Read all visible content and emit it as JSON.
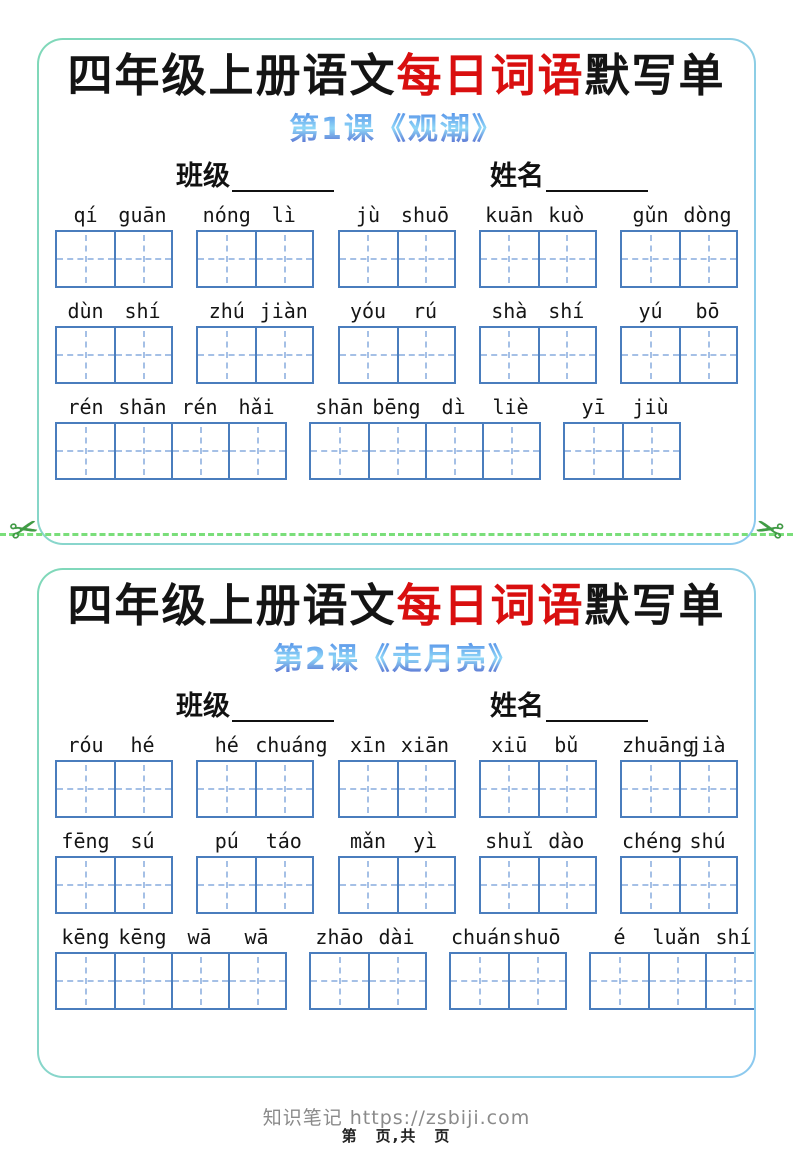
{
  "colors": {
    "title_text": "#141414",
    "title_highlight": "#d90f0f",
    "subtitle_blue": "#4a86e8",
    "grid_border": "#4a7dbd",
    "grid_dash": "#a5c0e6",
    "card_border_gradient_start": "#7fd8b8",
    "card_border_gradient_end": "#8cc9ef",
    "cut_line_green": "#7ade7a",
    "scissors_green": "#3f9d44",
    "watermark_gray": "#7d7d7d"
  },
  "icons": {
    "scissors_glyph": "✂"
  },
  "labels": {
    "class_label": "班级",
    "name_label": "姓名"
  },
  "footer": {
    "watermark": "知识笔记 https://zsbiji.com",
    "page_info": "第　页,共　页"
  },
  "sections": [
    {
      "title": {
        "prefix": "四年级上册语文",
        "highlight": "每日词语",
        "suffix": "默写单"
      },
      "subtitle": "第1课《观潮》",
      "rows": [
        {
          "layout": "justify",
          "words": [
            {
              "syllables": [
                "qí",
                "guān"
              ]
            },
            {
              "syllables": [
                "nóng",
                "lì"
              ]
            },
            {
              "syllables": [
                "jù",
                "shuō"
              ]
            },
            {
              "syllables": [
                "kuān",
                "kuò"
              ]
            },
            {
              "syllables": [
                "gǔn",
                "dòng"
              ]
            }
          ]
        },
        {
          "layout": "justify",
          "words": [
            {
              "syllables": [
                "dùn",
                "shí"
              ]
            },
            {
              "syllables": [
                "zhú",
                "jiàn"
              ]
            },
            {
              "syllables": [
                "yóu",
                "rú"
              ]
            },
            {
              "syllables": [
                "shà",
                "shí"
              ]
            },
            {
              "syllables": [
                "yú",
                "bō"
              ]
            }
          ]
        },
        {
          "layout": "start",
          "words": [
            {
              "syllables": [
                "rén",
                "shān",
                "rén",
                "hǎi"
              ]
            },
            {
              "syllables": [
                "shān",
                "bēng",
                "dì",
                "liè"
              ]
            },
            {
              "syllables": [
                "yī",
                "jiù"
              ]
            }
          ]
        }
      ]
    },
    {
      "title": {
        "prefix": "四年级上册语文",
        "highlight": "每日词语",
        "suffix": "默写单"
      },
      "subtitle": "第2课《走月亮》",
      "rows": [
        {
          "layout": "justify",
          "words": [
            {
              "syllables": [
                "róu",
                "hé"
              ]
            },
            {
              "syllables": [
                "hé",
                "chuáng"
              ]
            },
            {
              "syllables": [
                "xīn",
                "xiān"
              ]
            },
            {
              "syllables": [
                "xiū",
                "bǔ"
              ]
            },
            {
              "syllables": [
                "zhuāng",
                "jià"
              ]
            }
          ]
        },
        {
          "layout": "justify",
          "words": [
            {
              "syllables": [
                "fēng",
                "sú"
              ]
            },
            {
              "syllables": [
                "pú",
                "táo"
              ]
            },
            {
              "syllables": [
                "mǎn",
                "yì"
              ]
            },
            {
              "syllables": [
                "shuǐ",
                "dào"
              ]
            },
            {
              "syllables": [
                "chéng",
                "shú"
              ]
            }
          ]
        },
        {
          "layout": "start",
          "words": [
            {
              "syllables": [
                "kēng",
                "kēng",
                "wā",
                "wā"
              ]
            },
            {
              "syllables": [
                "zhāo",
                "dài"
              ]
            },
            {
              "syllables": [
                "chuán",
                "shuō"
              ]
            },
            {
              "syllables": [
                "é",
                "luǎn",
                "shí"
              ]
            }
          ]
        }
      ]
    }
  ]
}
